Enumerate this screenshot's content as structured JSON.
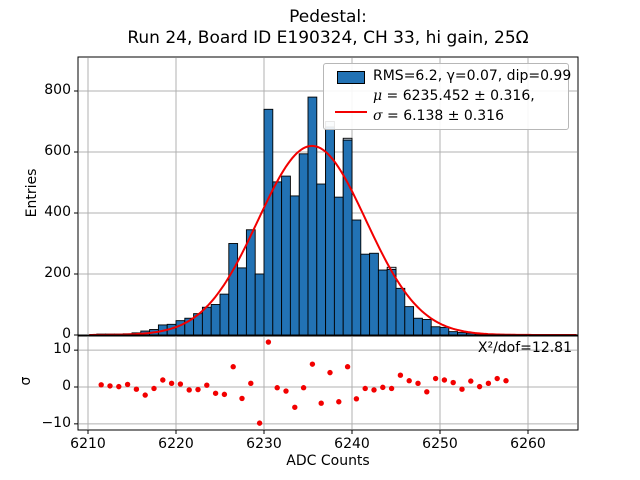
{
  "title": {
    "line1": "Pedestal:",
    "line2": "Run 24, Board ID E190324, CH 33, hi gain, 25Ω"
  },
  "legend": {
    "hist_label": "RMS=6.2, γ=0.07, dip=0.99",
    "mu_symbol": "μ",
    "mu_rest": " = 6235.452 ± 0.316,",
    "sigma_symbol": "σ",
    "sigma_rest": " = 6.138 ± 0.316"
  },
  "annotations": {
    "chi2": "X²/dof=12.81"
  },
  "axes": {
    "main": {
      "ylabel": "Entries",
      "yticks": [
        "0",
        "200",
        "400",
        "600",
        "800"
      ],
      "ytick_values": [
        0,
        200,
        400,
        600,
        800
      ]
    },
    "residual": {
      "ylabel": "σ",
      "yticks": [
        "10",
        "0",
        "−10"
      ],
      "ytick_values": [
        10,
        0,
        -10
      ]
    },
    "xlabel": "ADC Counts",
    "xticks": [
      "6210",
      "6220",
      "6230",
      "6240",
      "6250",
      "6260"
    ],
    "xtick_values": [
      6210,
      6220,
      6230,
      6240,
      6250,
      6260
    ]
  },
  "colors": {
    "bar_fill": "#2272b4",
    "bar_edge": "#000000",
    "bar_light_fill": "#ccdcec",
    "fit_line": "#f20000",
    "residual_dot": "#f20000",
    "grid": "#b0b0b0",
    "spine": "#000000"
  },
  "chart_data": {
    "type": "histogram+fit+residuals",
    "title": "Pedestal: Run 24, Board ID E190324, CH 33, hi gain, 25Ω",
    "xlabel": "ADC Counts",
    "ylabel_main": "Entries",
    "ylabel_residual": "σ",
    "xlim": [
      6208.9,
      6266.0
    ],
    "main_ylim": [
      0,
      911
    ],
    "residual_ylim": [
      -11.8,
      13.8
    ],
    "grid": true,
    "bin_width": 1,
    "bin_start": 6211,
    "counts": [
      3,
      3,
      3,
      4,
      7,
      13,
      18,
      33,
      35,
      47,
      55,
      70,
      91,
      100,
      134,
      300,
      220,
      345,
      200,
      740,
      502,
      521,
      456,
      594,
      780,
      495,
      682,
      452,
      639,
      377,
      265,
      268,
      213,
      215,
      153,
      93,
      55,
      51,
      27,
      25,
      11,
      8,
      6,
      4,
      3,
      2,
      2
    ],
    "light_overlay": {
      "bins": [
        6237,
        6239,
        6244
      ],
      "values": [
        700,
        645,
        222
      ]
    },
    "fit": {
      "shape": "gaussian",
      "mu": 6235.452,
      "mu_err": 0.316,
      "sigma": 6.138,
      "sigma_err": 0.316,
      "amplitude": 620
    },
    "stats": {
      "rms": 6.2,
      "gamma": 0.07,
      "dip": 0.99,
      "chi2_over_dof": 12.81
    },
    "residuals": {
      "x": [
        6211.5,
        6212.5,
        6213.5,
        6214.5,
        6215.5,
        6216.5,
        6217.5,
        6218.5,
        6219.5,
        6220.5,
        6221.5,
        6222.5,
        6223.5,
        6224.5,
        6225.5,
        6226.5,
        6227.5,
        6228.5,
        6229.5,
        6230.5,
        6231.5,
        6232.5,
        6233.5,
        6234.5,
        6235.5,
        6236.5,
        6237.5,
        6238.5,
        6239.5,
        6240.5,
        6241.5,
        6242.5,
        6243.5,
        6244.5,
        6245.5,
        6246.5,
        6247.5,
        6248.5,
        6249.5,
        6250.5,
        6251.5,
        6252.5,
        6253.5,
        6254.5,
        6255.5,
        6256.5,
        6257.5
      ],
      "sigma": [
        0.6,
        0.3,
        0.1,
        0.7,
        -0.6,
        -2.2,
        -0.4,
        1.9,
        1.0,
        0.8,
        -0.8,
        -0.7,
        0.5,
        -1.7,
        -2.0,
        5.5,
        -3.1,
        1.0,
        -9.8,
        12.2,
        -0.2,
        -1.1,
        -5.5,
        -0.2,
        6.2,
        -4.4,
        3.9,
        -4.0,
        5.5,
        -3.2,
        -0.4,
        -0.8,
        -0.1,
        -0.4,
        3.2,
        1.7,
        1.0,
        -1.3,
        2.3,
        1.9,
        1.2,
        -0.6,
        1.6,
        0.1,
        1.0,
        2.3,
        1.7
      ]
    }
  }
}
